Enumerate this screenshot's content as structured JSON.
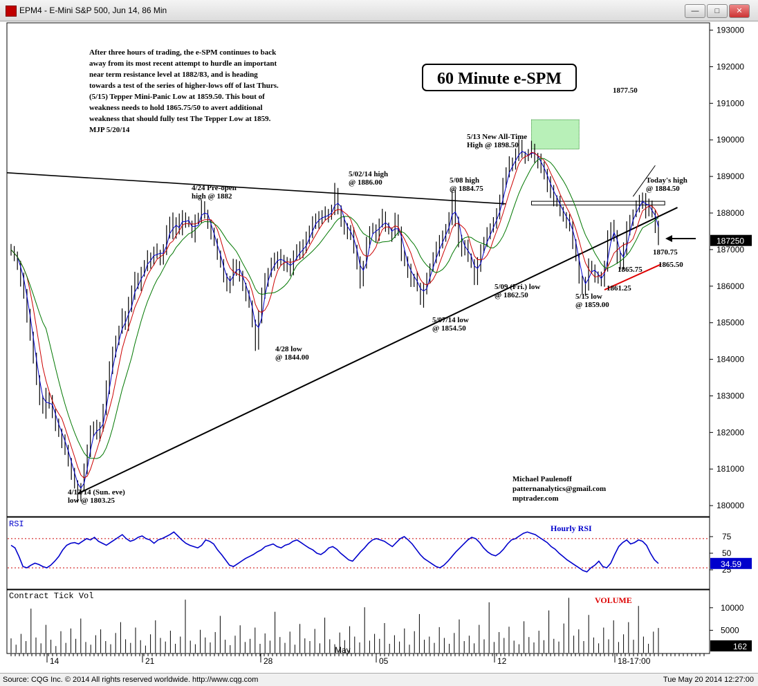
{
  "window": {
    "title": "EPM4 - E-Mini S&P 500, Jun 14, 86 Min",
    "min_label": "—",
    "max_label": "□",
    "close_label": "✕"
  },
  "status": {
    "copyright": "Source: CQG Inc. © 2014 All rights reserved worldwide. http://www.cqg.com",
    "timestamp": "Tue May 20 2014 12:27:00"
  },
  "commentary": [
    "After three hours of trading, the e-SPM continues to back",
    "away from its most recent attempt to hurdle an important",
    "near term resistance level at 1882/83, and is heading",
    "towards a test of the series of higher-lows off of last Thurs.",
    "(5/15) Tepper Mini-Panic Low at 1859.50. This bout of",
    "weakness needs to hold 1865.75/50 to avert additional",
    "weakness that should fully test The Tepper Low at 1859.",
    "MJP  5/20/14"
  ],
  "chart_title": "60 Minute e-SPM",
  "author": [
    "Michael Paulenoff",
    "patternanalytics@gmail.com",
    "mptrader.com"
  ],
  "colors": {
    "price": "#000000",
    "ma_fast": "#0000cc",
    "ma_mid": "#cc0000",
    "ma_slow": "#007700",
    "rsi": "#0000cc",
    "resistance_box": "#b8f0b8",
    "support_line": "#dd0000"
  },
  "chart_data": [
    {
      "type": "line",
      "panel": "price",
      "x_labels": [
        "14",
        "21",
        "28",
        "05",
        "12",
        "18-17:00"
      ],
      "x_month_label": "May",
      "y_ticks": [
        180000,
        181000,
        182000,
        183000,
        184000,
        185000,
        186000,
        187000,
        188000,
        189000,
        190000,
        191000,
        192000,
        193000
      ],
      "ylim": [
        1797,
        1932
      ],
      "last_price_label": "187250",
      "series": [
        {
          "values": [
            1870,
            1868,
            1866,
            1862,
            1858,
            1852,
            1846,
            1840,
            1834,
            1829,
            1826,
            1830,
            1828,
            1825,
            1822,
            1820,
            1818,
            1815,
            1812,
            1809,
            1806,
            1803.25,
            1805,
            1810,
            1815,
            1820,
            1822,
            1819,
            1822,
            1826,
            1832,
            1838,
            1842,
            1845,
            1848,
            1852,
            1850,
            1855,
            1858,
            1862,
            1860,
            1864,
            1866,
            1868,
            1867,
            1870,
            1869,
            1868,
            1870,
            1875,
            1878,
            1874,
            1878,
            1876,
            1879,
            1878,
            1877,
            1874,
            1878,
            1878,
            1882,
            1880,
            1877,
            1874,
            1872,
            1868,
            1866,
            1862,
            1860,
            1862,
            1866,
            1865,
            1863,
            1860,
            1858,
            1855,
            1850,
            1844,
            1852,
            1858,
            1862,
            1864,
            1866,
            1867,
            1868,
            1867,
            1866,
            1866,
            1865,
            1868,
            1870,
            1869,
            1871,
            1873,
            1875,
            1877,
            1879,
            1878,
            1879,
            1880,
            1879,
            1881,
            1886,
            1881,
            1878,
            1876,
            1875,
            1874,
            1870,
            1866,
            1861,
            1866,
            1872,
            1875,
            1876,
            1874,
            1877,
            1879,
            1876,
            1875,
            1874,
            1878,
            1875,
            1868,
            1867,
            1864,
            1862,
            1862,
            1860,
            1856,
            1860,
            1862,
            1865,
            1868,
            1870,
            1872,
            1874,
            1876,
            1878,
            1884.75,
            1878,
            1872,
            1870,
            1871,
            1868,
            1866,
            1862.5,
            1866,
            1870,
            1872,
            1874,
            1876,
            1878,
            1880,
            1883,
            1888,
            1891,
            1894,
            1893,
            1896,
            1898.5,
            1896,
            1895,
            1896,
            1898,
            1895,
            1894,
            1893,
            1890,
            1888,
            1886,
            1884,
            1883,
            1880,
            1879,
            1878,
            1876,
            1872,
            1868,
            1862,
            1859,
            1861,
            1866,
            1865,
            1862,
            1863,
            1861.25,
            1866,
            1874,
            1876,
            1874,
            1868,
            1865.75,
            1870,
            1876,
            1878,
            1880,
            1882,
            1883,
            1884.5,
            1880,
            1882,
            1880,
            1876,
            1872.5
          ],
          "note": ""
        }
      ],
      "moving_averages": [
        "ma_fast",
        "ma_mid",
        "ma_slow"
      ],
      "annotations": [
        {
          "lines": [
            "4/13/14 (Sun. eve)",
            "low @ 1803.25"
          ]
        },
        {
          "lines": [
            "4/24 Pre-open",
            "high @ 1882"
          ]
        },
        {
          "lines": [
            "4/28 low",
            "@ 1844.00"
          ]
        },
        {
          "lines": [
            "5/02/14 high",
            "@ 1886.00"
          ]
        },
        {
          "lines": [
            "5/07/14 low",
            "@ 1854.50"
          ]
        },
        {
          "lines": [
            "5/08 high",
            "@ 1884.75"
          ]
        },
        {
          "lines": [
            "5/09 (Fri.) low",
            "@ 1862.50"
          ]
        },
        {
          "lines": [
            "5/13 New All-Time",
            "High @ 1898.50"
          ]
        },
        {
          "lines": [
            "5/15 low",
            "@ 1859.00"
          ]
        },
        {
          "lines": [
            "Today's high",
            "@ 1884.50"
          ]
        },
        {
          "lines": [
            "1877.50"
          ]
        },
        {
          "lines": [
            "1870.75"
          ]
        },
        {
          "lines": [
            "1865.75"
          ]
        },
        {
          "lines": [
            "1865.50"
          ],
          "color": "#dd0000"
        },
        {
          "lines": [
            "1861.25"
          ]
        }
      ]
    },
    {
      "type": "line",
      "panel": "rsi",
      "title": "RSI",
      "legend": "Hourly RSI",
      "y_ticks": [
        25,
        50,
        75
      ],
      "ylim": [
        0,
        100
      ],
      "reference_lines": [
        28,
        72
      ],
      "last_value_label": "34.59",
      "series": [
        {
          "values": [
            62,
            58,
            45,
            30,
            28,
            32,
            35,
            33,
            30,
            28,
            32,
            38,
            45,
            55,
            62,
            65,
            66,
            64,
            68,
            72,
            70,
            74,
            68,
            65,
            62,
            66,
            70,
            74,
            78,
            72,
            68,
            70,
            74,
            76,
            72,
            70,
            65,
            70,
            72,
            75,
            78,
            82,
            76,
            70,
            65,
            62,
            60,
            58,
            62,
            70,
            68,
            64,
            55,
            48,
            40,
            32,
            30,
            34,
            38,
            42,
            45,
            48,
            52,
            55,
            60,
            62,
            64,
            60,
            58,
            62,
            64,
            68,
            70,
            66,
            62,
            58,
            55,
            50,
            48,
            52,
            58,
            60,
            56,
            50,
            45,
            40,
            38,
            45,
            52,
            58,
            65,
            70,
            72,
            70,
            68,
            64,
            60,
            66,
            72,
            75,
            70,
            64,
            56,
            48,
            42,
            38,
            34,
            30,
            28,
            32,
            38,
            45,
            52,
            58,
            64,
            70,
            74,
            72,
            66,
            58,
            52,
            48,
            46,
            50,
            56,
            64,
            70,
            72,
            76,
            80,
            82,
            80,
            78,
            74,
            70,
            66,
            60,
            56,
            50,
            45,
            40,
            36,
            32,
            28,
            24,
            22,
            28,
            32,
            38,
            30,
            28,
            35,
            48,
            60,
            66,
            70,
            64,
            66,
            70,
            68,
            62,
            50,
            40,
            34.59
          ]
        }
      ]
    },
    {
      "type": "bar",
      "panel": "volume",
      "title": "Contract Tick Vol",
      "legend": "VOLUME",
      "y_ticks": [
        5000,
        10000
      ],
      "ylim": [
        0,
        13500
      ],
      "last_value_label": "162",
      "series": [
        {
          "values": [
            3200,
            1800,
            4200,
            2600,
            9800,
            3400,
            2100,
            6200,
            2900,
            1500,
            4800,
            2200,
            5400,
            3100,
            7600,
            2400,
            1800,
            3900,
            5200,
            2600,
            1900,
            4400,
            6800,
            3000,
            2200,
            5600,
            2800,
            1600,
            4100,
            7200,
            3300,
            2500,
            4900,
            2000,
            3600,
            11800,
            2700,
            1900,
            5100,
            3400,
            2300,
            4600,
            8200,
            2900,
            1700,
            3800,
            6100,
            2400,
            3100,
            5600,
            2000,
            4300,
            2700,
            9100,
            3500,
            2200,
            4700,
            1800,
            6400,
            3200,
            2600,
            5300,
            2100,
            7800,
            3000,
            1900,
            4500,
            2800,
            5900,
            3600,
            2300,
            10100,
            2700,
            4200,
            3100,
            6600,
            2000,
            3900,
            2500,
            5400,
            1800,
            4800,
            8600,
            2900,
            3600,
            2200,
            5700,
            3300,
            2000,
            4400,
            7400,
            2600,
            3800,
            2100,
            6200,
            3000,
            11200,
            2400,
            4600,
            3300,
            5800,
            2700,
            1900,
            7000,
            3500,
            2300,
            4900,
            2800,
            9400,
            3100,
            2500,
            6500,
            12200,
            3800,
            5200,
            2600,
            8400,
            3400,
            2100,
            5600,
            3000,
            7200,
            2400,
            4100,
            6800,
            2900,
            10400,
            3600,
            2000,
            4700,
            5500
          ]
        }
      ]
    }
  ]
}
